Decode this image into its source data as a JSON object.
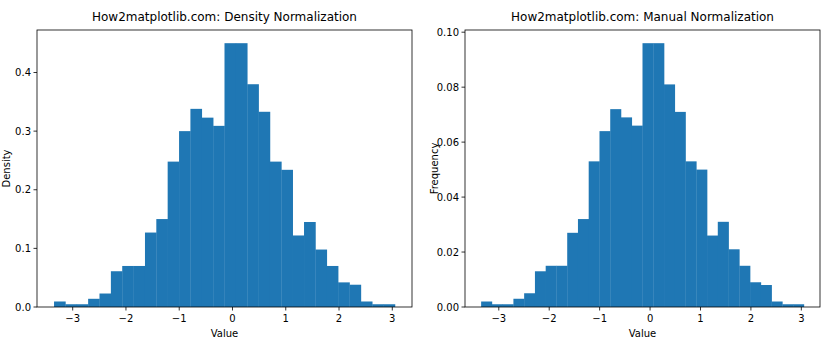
{
  "chart_data": [
    {
      "type": "histogram",
      "title": "How2matplotlib.com: Density Normalization",
      "x_label": "Value",
      "y_label": "Density",
      "color": "#1f77b4",
      "bins": [
        -3.35,
        -3.137,
        -2.923,
        -2.71,
        -2.497,
        -2.283,
        -2.07,
        -1.857,
        -1.643,
        -1.43,
        -1.217,
        -1.003,
        -0.79,
        -0.577,
        -0.363,
        -0.15,
        0.063,
        0.277,
        0.49,
        0.703,
        0.917,
        1.13,
        1.343,
        1.557,
        1.77,
        1.983,
        2.197,
        2.41,
        2.623,
        2.837,
        3.05
      ],
      "values": [
        0.0094,
        0.0047,
        0.0047,
        0.014,
        0.023,
        0.061,
        0.07,
        0.07,
        0.127,
        0.15,
        0.248,
        0.3,
        0.338,
        0.323,
        0.309,
        0.45,
        0.45,
        0.38,
        0.333,
        0.248,
        0.234,
        0.122,
        0.145,
        0.098,
        0.07,
        0.042,
        0.038,
        0.0094,
        0.0047,
        0.0047
      ],
      "xlim": [
        -3.67,
        3.37
      ],
      "xticks": [
        {
          "value": -3,
          "label": "−3"
        },
        {
          "value": -2,
          "label": "−2"
        },
        {
          "value": -1,
          "label": "−1"
        },
        0,
        1,
        2,
        3
      ],
      "ylim": [
        0,
        0.4725
      ],
      "yticks": [
        {
          "value": 0,
          "label": "0.0"
        },
        {
          "value": 0.1,
          "label": "0.1"
        },
        {
          "value": 0.2,
          "label": "0.2"
        },
        {
          "value": 0.3,
          "label": "0.3"
        },
        {
          "value": 0.4,
          "label": "0.4"
        }
      ]
    },
    {
      "type": "histogram",
      "title": "How2matplotlib.com: Manual Normalization",
      "x_label": "Value",
      "y_label": "Frequency",
      "color": "#1f77b4",
      "bins": [
        -3.35,
        -3.137,
        -2.923,
        -2.71,
        -2.497,
        -2.283,
        -2.07,
        -1.857,
        -1.643,
        -1.43,
        -1.217,
        -1.003,
        -0.79,
        -0.577,
        -0.363,
        -0.15,
        0.063,
        0.277,
        0.49,
        0.703,
        0.917,
        1.13,
        1.343,
        1.557,
        1.77,
        1.983,
        2.197,
        2.41,
        2.623,
        2.837,
        3.05
      ],
      "values": [
        0.002,
        0.001,
        0.001,
        0.003,
        0.005,
        0.013,
        0.015,
        0.015,
        0.027,
        0.032,
        0.053,
        0.064,
        0.072,
        0.069,
        0.066,
        0.096,
        0.096,
        0.081,
        0.071,
        0.053,
        0.05,
        0.026,
        0.031,
        0.021,
        0.015,
        0.009,
        0.008,
        0.002,
        0.001,
        0.001
      ],
      "xlim": [
        -3.67,
        3.37
      ],
      "xticks": [
        {
          "value": -3,
          "label": "−3"
        },
        {
          "value": -2,
          "label": "−2"
        },
        {
          "value": -1,
          "label": "−1"
        },
        0,
        1,
        2,
        3
      ],
      "ylim": [
        0,
        0.1008
      ],
      "yticks": [
        {
          "value": 0,
          "label": "0.00"
        },
        {
          "value": 0.02,
          "label": "0.02"
        },
        {
          "value": 0.04,
          "label": "0.04"
        },
        {
          "value": 0.06,
          "label": "0.06"
        },
        {
          "value": 0.08,
          "label": "0.08"
        },
        {
          "value": 0.1,
          "label": "0.10"
        }
      ]
    }
  ]
}
